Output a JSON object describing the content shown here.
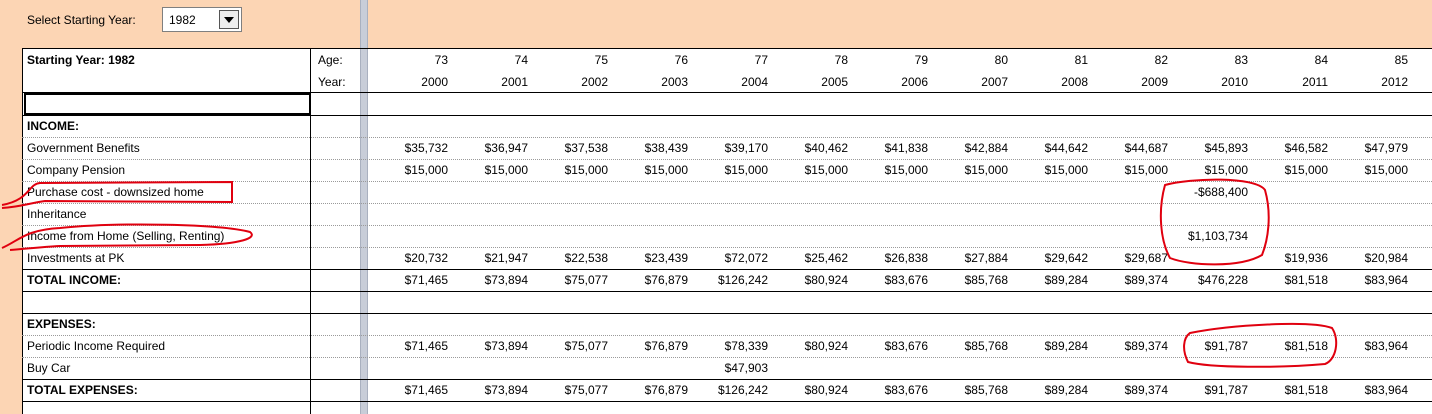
{
  "controls": {
    "start_year_label": "Select Starting Year:",
    "start_year": "1982"
  },
  "table": {
    "title": "Starting Year: 1982",
    "age_label": "Age:",
    "year_label": "Year:",
    "ages": [
      "73",
      "74",
      "75",
      "76",
      "77",
      "78",
      "79",
      "80",
      "81",
      "82",
      "83",
      "84",
      "85"
    ],
    "years": [
      "2000",
      "2001",
      "2002",
      "2003",
      "2004",
      "2005",
      "2006",
      "2007",
      "2008",
      "2009",
      "2010",
      "2011",
      "2012"
    ],
    "rows": [
      {
        "label": "INCOME:",
        "bold": true
      },
      {
        "label": "Government Benefits",
        "values": [
          "$35,732",
          "$36,947",
          "$37,538",
          "$38,439",
          "$39,170",
          "$40,462",
          "$41,838",
          "$42,884",
          "$44,642",
          "$44,687",
          "$45,893",
          "$46,582",
          "$47,979"
        ]
      },
      {
        "label": "Company Pension",
        "values": [
          "$15,000",
          "$15,000",
          "$15,000",
          "$15,000",
          "$15,000",
          "$15,000",
          "$15,000",
          "$15,000",
          "$15,000",
          "$15,000",
          "$15,000",
          "$15,000",
          "$15,000"
        ]
      },
      {
        "label": "Purchase cost - downsized home",
        "values": [
          null,
          null,
          null,
          null,
          null,
          null,
          null,
          null,
          null,
          null,
          "-$688,400",
          null,
          null
        ]
      },
      {
        "label": "Inheritance"
      },
      {
        "label": "Income from Home (Selling, Renting)",
        "values": [
          null,
          null,
          null,
          null,
          null,
          null,
          null,
          null,
          null,
          null,
          "$1,103,734",
          null,
          null
        ]
      },
      {
        "label": "Investments at PK",
        "values": [
          "$20,732",
          "$21,947",
          "$22,538",
          "$23,439",
          "$72,072",
          "$25,462",
          "$26,838",
          "$27,884",
          "$29,642",
          "$29,687",
          null,
          "$19,936",
          "$20,984"
        ]
      },
      {
        "label": "TOTAL INCOME:",
        "bold": true,
        "values": [
          "$71,465",
          "$73,894",
          "$75,077",
          "$76,879",
          "$126,242",
          "$80,924",
          "$83,676",
          "$85,768",
          "$89,284",
          "$89,374",
          "$476,228",
          "$81,518",
          "$83,964"
        ]
      },
      {
        "label": "EXPENSES:",
        "bold": true,
        "spacer_before": true
      },
      {
        "label": "Periodic Income Required",
        "values": [
          "$71,465",
          "$73,894",
          "$75,077",
          "$76,879",
          "$78,339",
          "$80,924",
          "$83,676",
          "$85,768",
          "$89,284",
          "$89,374",
          "$91,787",
          "$81,518",
          "$83,964"
        ]
      },
      {
        "label": "Buy Car",
        "values": [
          null,
          null,
          null,
          null,
          "$47,903",
          null,
          null,
          null,
          null,
          null,
          null,
          null,
          null
        ]
      },
      {
        "label": "TOTAL EXPENSES:",
        "bold": true,
        "values": [
          "$71,465",
          "$73,894",
          "$75,077",
          "$76,879",
          "$126,242",
          "$80,924",
          "$83,676",
          "$85,768",
          "$89,284",
          "$89,374",
          "$91,787",
          "$81,518",
          "$83,964"
        ]
      }
    ]
  }
}
